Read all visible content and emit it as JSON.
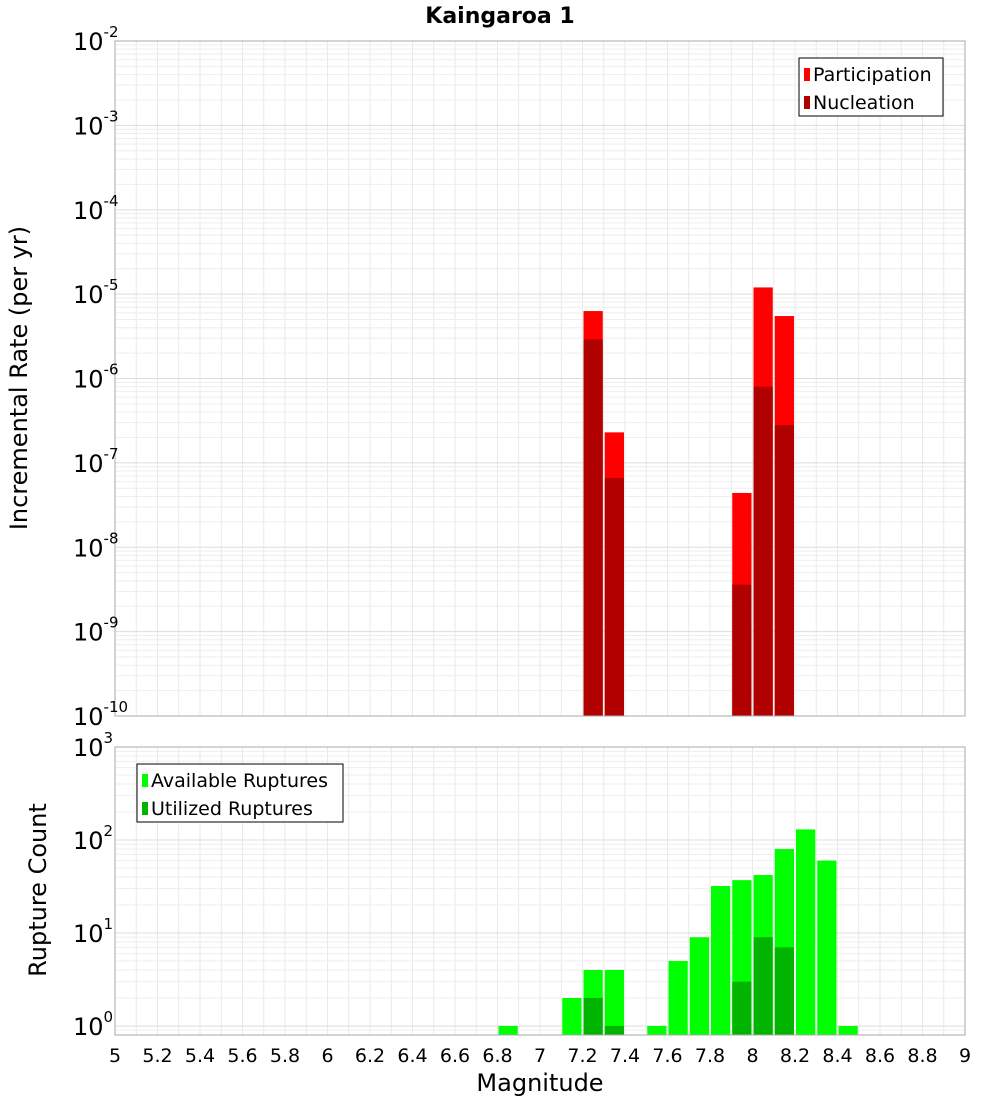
{
  "title": "Kaingaroa 1",
  "chart_data": [
    {
      "type": "bar",
      "panel": "top",
      "ylabel": "Incremental Rate (per yr)",
      "yscale": "log",
      "ylim": [
        1e-10,
        0.01
      ],
      "y_ticks": [
        {
          "base": "10",
          "exp": "-10"
        },
        {
          "base": "10",
          "exp": "-9"
        },
        {
          "base": "10",
          "exp": "-8"
        },
        {
          "base": "10",
          "exp": "-7"
        },
        {
          "base": "10",
          "exp": "-6"
        },
        {
          "base": "10",
          "exp": "-5"
        },
        {
          "base": "10",
          "exp": "-4"
        },
        {
          "base": "10",
          "exp": "-3"
        },
        {
          "base": "10",
          "exp": "-2"
        }
      ],
      "bin_width": 0.1,
      "legend_position": "top-right",
      "series": [
        {
          "name": "Participation",
          "color": "#ff0000",
          "points": [
            {
              "x": 7.25,
              "y": 6.3e-06
            },
            {
              "x": 7.35,
              "y": 2.3e-07
            },
            {
              "x": 7.95,
              "y": 4.4e-08
            },
            {
              "x": 8.05,
              "y": 1.2e-05
            },
            {
              "x": 8.15,
              "y": 5.5e-06
            }
          ]
        },
        {
          "name": "Nucleation",
          "color": "#b00000",
          "points": [
            {
              "x": 7.25,
              "y": 2.9e-06
            },
            {
              "x": 7.35,
              "y": 6.6e-08
            },
            {
              "x": 7.95,
              "y": 3.6e-09
            },
            {
              "x": 8.05,
              "y": 8e-07
            },
            {
              "x": 8.15,
              "y": 2.8e-07
            }
          ]
        }
      ]
    },
    {
      "type": "bar",
      "panel": "bottom",
      "xlabel": "Magnitude",
      "ylabel": "Rupture Count",
      "yscale": "log",
      "ylim": [
        0.8,
        1000
      ],
      "xlim": [
        5,
        9
      ],
      "x_ticks": [
        "5",
        "5.2",
        "5.4",
        "5.6",
        "5.8",
        "6",
        "6.2",
        "6.4",
        "6.6",
        "6.8",
        "7",
        "7.2",
        "7.4",
        "7.6",
        "7.8",
        "8",
        "8.2",
        "8.4",
        "8.6",
        "8.8",
        "9"
      ],
      "y_ticks": [
        {
          "base": "10",
          "exp": "0"
        },
        {
          "base": "10",
          "exp": "1"
        },
        {
          "base": "10",
          "exp": "2"
        },
        {
          "base": "10",
          "exp": "3"
        }
      ],
      "bin_width": 0.1,
      "legend_position": "top-left",
      "series": [
        {
          "name": "Available Ruptures",
          "color": "#00ff00",
          "points": [
            {
              "x": 6.85,
              "y": 1
            },
            {
              "x": 7.15,
              "y": 2
            },
            {
              "x": 7.25,
              "y": 4
            },
            {
              "x": 7.35,
              "y": 4
            },
            {
              "x": 7.55,
              "y": 1
            },
            {
              "x": 7.65,
              "y": 5
            },
            {
              "x": 7.75,
              "y": 9
            },
            {
              "x": 7.85,
              "y": 32
            },
            {
              "x": 7.95,
              "y": 37
            },
            {
              "x": 8.05,
              "y": 42
            },
            {
              "x": 8.15,
              "y": 80
            },
            {
              "x": 8.25,
              "y": 130
            },
            {
              "x": 8.35,
              "y": 60
            },
            {
              "x": 8.45,
              "y": 1
            }
          ]
        },
        {
          "name": "Utilized Ruptures",
          "color": "#00b400",
          "points": [
            {
              "x": 7.25,
              "y": 2
            },
            {
              "x": 7.35,
              "y": 1
            },
            {
              "x": 7.95,
              "y": 3
            },
            {
              "x": 8.05,
              "y": 9
            },
            {
              "x": 8.15,
              "y": 7
            }
          ]
        }
      ]
    }
  ]
}
